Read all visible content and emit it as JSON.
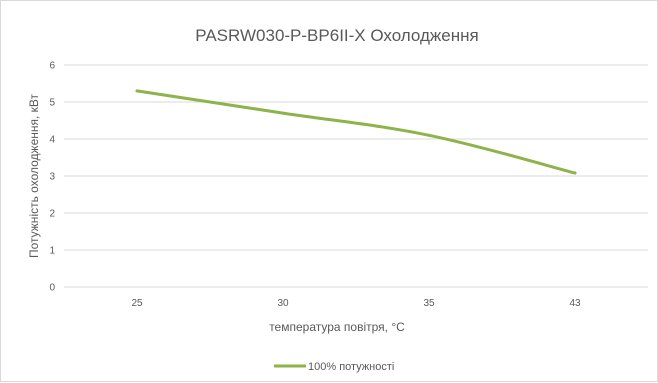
{
  "chart_data": {
    "type": "line",
    "title": "PASRW030-P-BP6II-X Охолодження",
    "xlabel": "температура повітря, °C",
    "ylabel": "Потужність охолодження, кВт",
    "categories": [
      "25",
      "30",
      "35",
      "43"
    ],
    "y_ticks": [
      "0",
      "1",
      "2",
      "3",
      "4",
      "5",
      "6"
    ],
    "ylim": [
      0,
      6
    ],
    "grid": true,
    "legend_position": "bottom",
    "series": [
      {
        "name": "100% потужності",
        "color": "#8db34a",
        "values": [
          5.3,
          4.7,
          4.1,
          3.08
        ]
      }
    ]
  }
}
